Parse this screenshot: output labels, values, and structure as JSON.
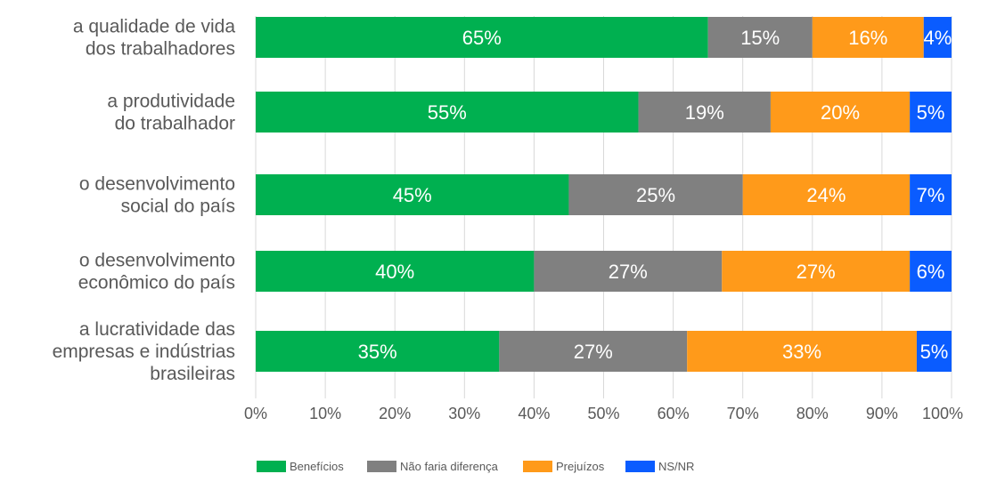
{
  "chart_data": {
    "type": "bar",
    "orientation": "horizontal",
    "stacked": "percent",
    "categories": [
      [
        "a qualidade de vida",
        "dos trabalhadores"
      ],
      [
        "a produtividade",
        "do trabalhador"
      ],
      [
        "o desenvolvimento",
        "social do país"
      ],
      [
        "o desenvolvimento",
        "econômico do país"
      ],
      [
        "a lucratividade das",
        "empresas e indústrias",
        "brasileiras"
      ]
    ],
    "series": [
      {
        "name": "Benefícios",
        "color": "#00b050",
        "values": [
          65,
          55,
          45,
          40,
          35
        ]
      },
      {
        "name": "Não faria diferença",
        "color": "#808080",
        "values": [
          15,
          19,
          25,
          27,
          27
        ]
      },
      {
        "name": "Prejuízos",
        "color": "#ff9a1a",
        "values": [
          16,
          20,
          24,
          27,
          33
        ]
      },
      {
        "name": "NS/NR",
        "color": "#0a5cff",
        "values": [
          4,
          5,
          7,
          6,
          5
        ]
      }
    ],
    "data_labels": [
      [
        "65%",
        "15%",
        "16%",
        "4%"
      ],
      [
        "55%",
        "19%",
        "20%",
        "5%"
      ],
      [
        "45%",
        "25%",
        "24%",
        "7%"
      ],
      [
        "40%",
        "27%",
        "27%",
        "6%"
      ],
      [
        "35%",
        "27%",
        "33%",
        "5%"
      ]
    ],
    "xticks": [
      "0%",
      "10%",
      "20%",
      "30%",
      "40%",
      "50%",
      "60%",
      "70%",
      "80%",
      "90%",
      "100%"
    ],
    "xlim": [
      0,
      100
    ],
    "grid": true,
    "legend_position": "bottom"
  }
}
